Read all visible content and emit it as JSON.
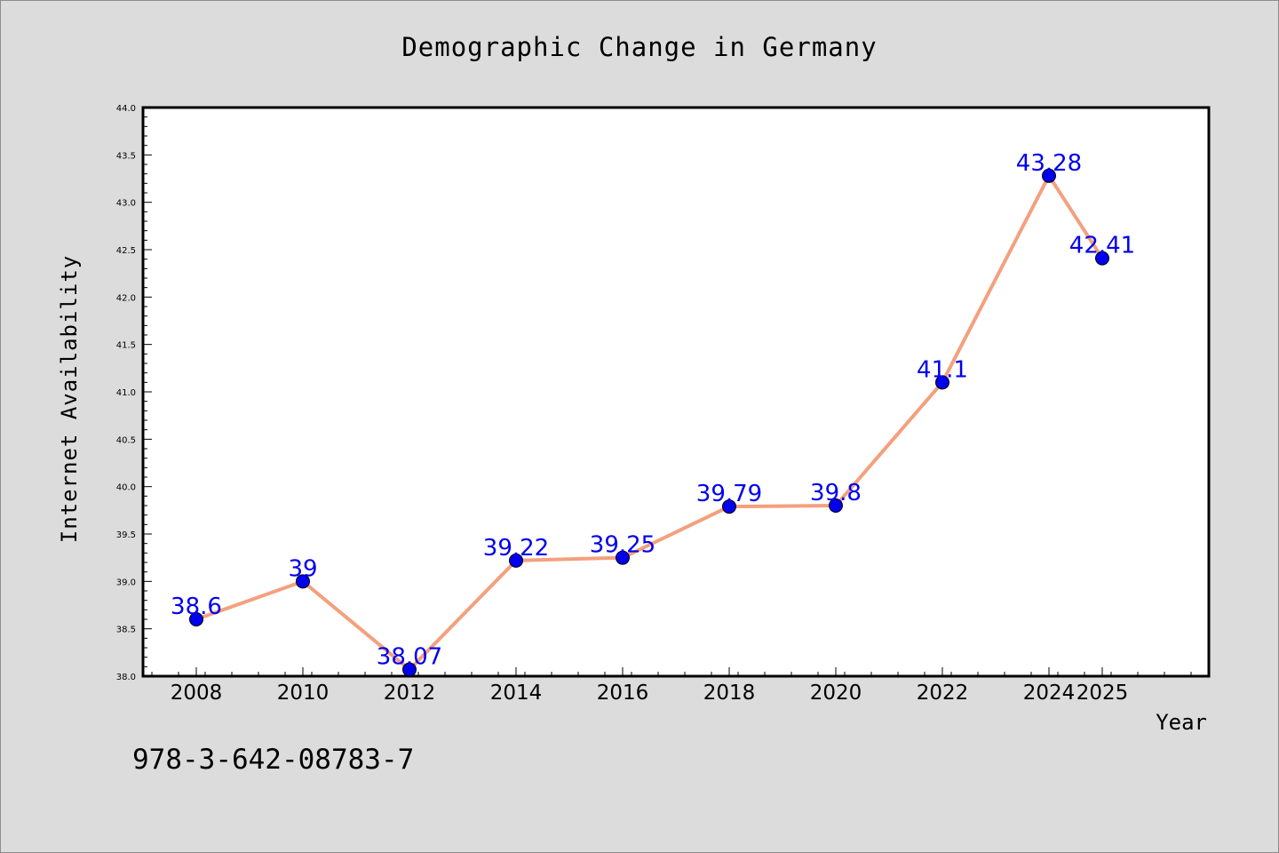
{
  "chart_data": {
    "type": "line",
    "title": "Demographic Change in Germany",
    "xlabel": "Year",
    "ylabel": "Internet Availability",
    "categories": [
      "2008",
      "2010",
      "2012",
      "2014",
      "2016",
      "2018",
      "2020",
      "2022",
      "2024",
      "2025"
    ],
    "values": [
      38.6,
      39,
      38.07,
      39.22,
      39.25,
      39.79,
      39.8,
      41.1,
      43.28,
      42.41
    ],
    "data_labels": [
      "38.6",
      "39",
      "38.07",
      "39.22",
      "39.25",
      "39.79",
      "39.8",
      "41.1",
      "43.28",
      "42.41"
    ],
    "ylim": [
      38.0,
      44.0
    ],
    "y_ticks": [
      "38.0",
      "38.5",
      "39.0",
      "39.5",
      "40.0",
      "40.5",
      "41.0",
      "41.5",
      "42.0",
      "42.5",
      "43.0",
      "43.5",
      "44.0"
    ],
    "grid": false,
    "line_color": "#f4a07e",
    "marker_color": "#0000ee",
    "label_color": "#0000ee"
  },
  "footer": {
    "isbn": "978-3-642-08783-7"
  }
}
